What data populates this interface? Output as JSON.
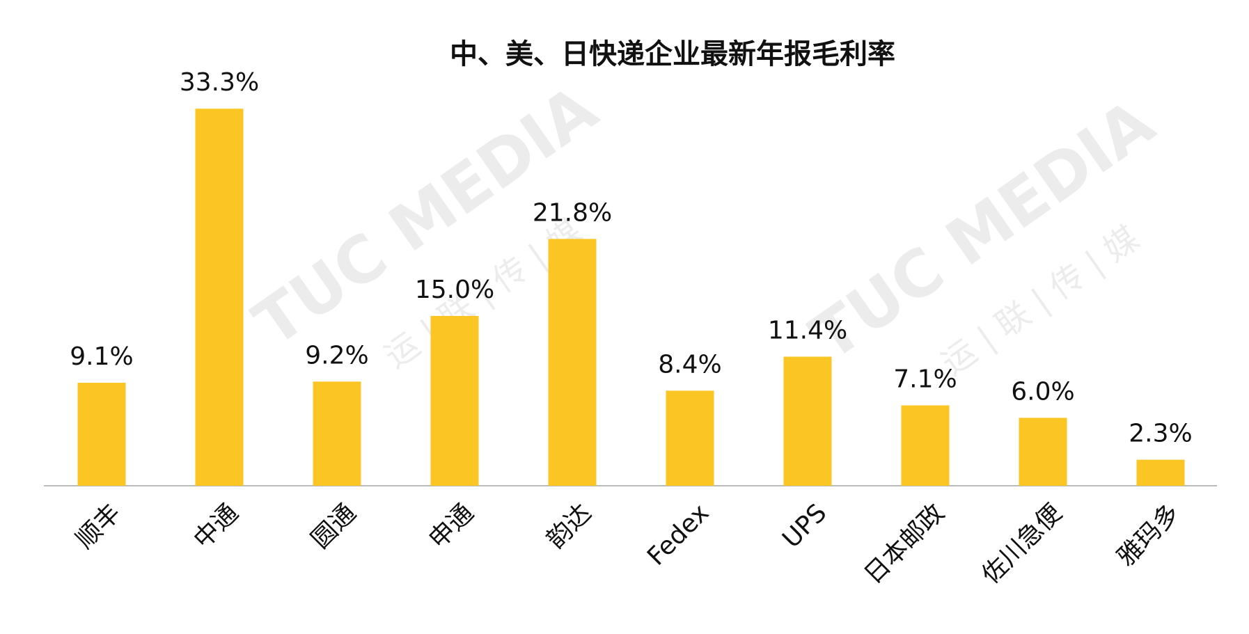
{
  "chart_data": {
    "type": "bar",
    "title": "中、美、日快递企业最新年报毛利率",
    "categories": [
      "顺丰",
      "中通",
      "圆通",
      "申通",
      "韵达",
      "Fedex",
      "UPS",
      "日本邮政",
      "佐川急便",
      "雅玛多"
    ],
    "values": [
      9.1,
      33.3,
      9.2,
      15.0,
      21.8,
      8.4,
      11.4,
      7.1,
      6.0,
      2.3
    ],
    "value_labels": [
      "9.1%",
      "33.3%",
      "9.2%",
      "15.0%",
      "21.8%",
      "8.4%",
      "11.4%",
      "7.1%",
      "6.0%",
      "2.3%"
    ],
    "color": "#fbc623",
    "watermark": [
      "TUC MEDIA",
      "运 | 联 | 传 | 媒"
    ]
  }
}
